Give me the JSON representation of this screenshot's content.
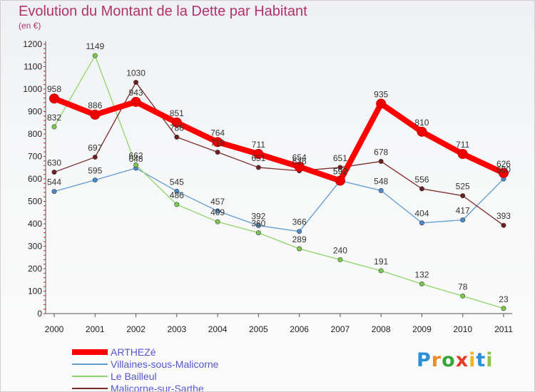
{
  "title": "Evolution du Montant de la Dette par Habitant",
  "subtitle": "(en €)",
  "logo": {
    "text": "Proxiti",
    "letters": [
      "P",
      "r",
      "o",
      "x",
      "i",
      "t",
      "i"
    ],
    "colors": [
      "#2a8fd6",
      "#f08a1e",
      "#3aa63a",
      "#e23d2a",
      "#f2b51a",
      "#2a8fd6",
      "#8cc63f"
    ]
  },
  "chart_data": {
    "type": "line",
    "x": [
      "2000",
      "2001",
      "2002",
      "2003",
      "2004",
      "2005",
      "2006",
      "2007",
      "2008",
      "2009",
      "2010",
      "2011"
    ],
    "ylim": [
      0,
      1200
    ],
    "yticks": [
      0,
      100,
      200,
      300,
      400,
      500,
      600,
      700,
      800,
      900,
      1000,
      1100,
      1200
    ],
    "grid": false,
    "legend_position": "bottom-left",
    "series": [
      {
        "name": "Villaines-sous-Malicorne",
        "color": "#5f9bd0",
        "point_color": "#4a8ac8",
        "width": 1.3,
        "values": [
          544,
          595,
          648,
          545,
          457,
          392,
          366,
          592,
          548,
          404,
          417,
          600
        ],
        "labels": [
          "544",
          "595",
          "648",
          "545",
          "457",
          "392",
          "366",
          "592",
          "548",
          "404",
          "417",
          "600"
        ]
      },
      {
        "name": "Le Bailleul",
        "color": "#8fd46a",
        "point_color": "#7ac84f",
        "width": 1.3,
        "values": [
          832,
          1149,
          662,
          486,
          409,
          360,
          289,
          240,
          191,
          132,
          78,
          23
        ],
        "labels": [
          "832",
          "1149",
          "662",
          "486",
          "409",
          "360",
          "289",
          "240",
          "191",
          "132",
          "78",
          "23"
        ]
      },
      {
        "name": "Malicorne-sur-Sarthe",
        "color": "#7a2a2a",
        "point_color": "#6b1f1f",
        "width": 1.3,
        "values": [
          630,
          697,
          1030,
          786,
          719,
          651,
          636,
          651,
          678,
          556,
          525,
          393
        ],
        "labels": [
          "630",
          "697",
          "1030",
          "786",
          "719",
          "651",
          "636",
          "651",
          "678",
          "556",
          "525",
          "393"
        ]
      },
      {
        "name": "ARTHEZé",
        "color": "#ff0000",
        "point_color": "#ee0000",
        "width": 8,
        "values": [
          958,
          886,
          943,
          851,
          764,
          711,
          654,
          592,
          935,
          810,
          711,
          626
        ],
        "labels": [
          "958",
          "886",
          "943",
          "851",
          "764",
          "711",
          "654",
          "592",
          "935",
          "810",
          "711",
          "626"
        ]
      }
    ]
  },
  "legend": [
    {
      "label": "ARTHEZé",
      "color": "#ff0000",
      "width": 8
    },
    {
      "label": "Villaines-sous-Malicorne",
      "color": "#5f9bd0",
      "width": 2
    },
    {
      "label": "Le Bailleul",
      "color": "#8fd46a",
      "width": 2
    },
    {
      "label": "Malicorne-sur-Sarthe",
      "color": "#7a2a2a",
      "width": 2
    }
  ]
}
